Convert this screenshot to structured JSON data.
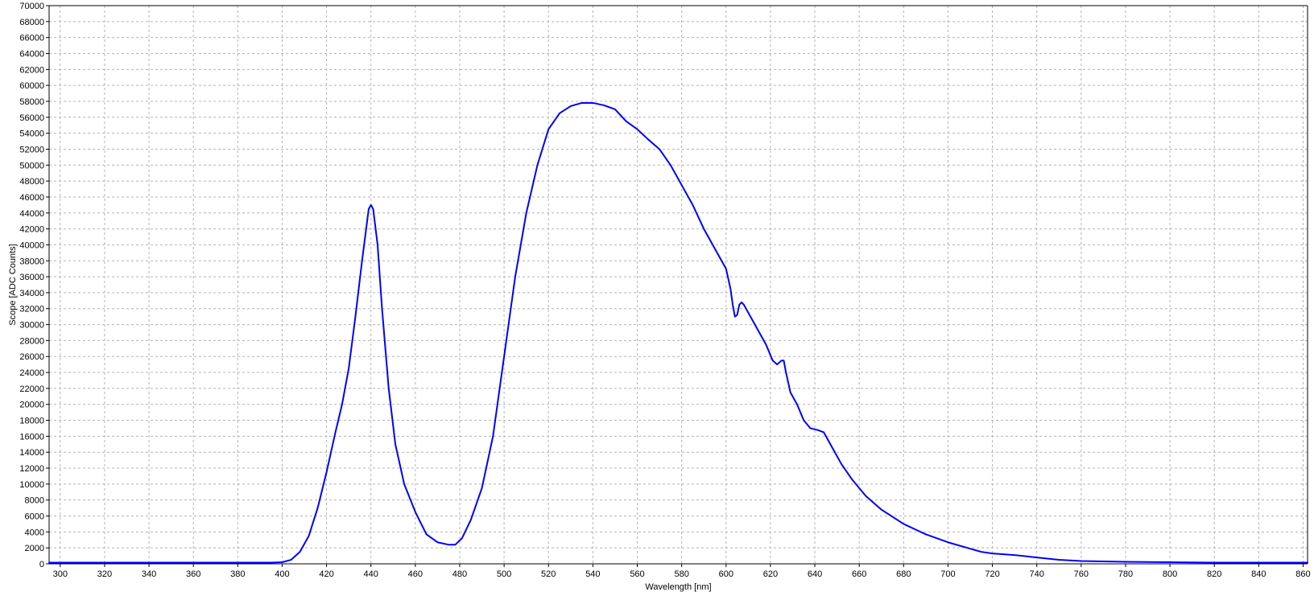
{
  "chart_data": {
    "type": "line",
    "xlabel": "Wavelength [nm]",
    "ylabel": "Scope [ADC Counts]",
    "xlim": [
      295,
      862
    ],
    "ylim": [
      0,
      70000
    ],
    "x_ticks": [
      300,
      320,
      340,
      360,
      380,
      400,
      420,
      440,
      460,
      480,
      500,
      520,
      540,
      560,
      580,
      600,
      620,
      640,
      660,
      680,
      700,
      720,
      740,
      760,
      780,
      800,
      820,
      840,
      860
    ],
    "y_ticks": [
      0,
      2000,
      4000,
      6000,
      8000,
      10000,
      12000,
      14000,
      16000,
      18000,
      20000,
      22000,
      24000,
      26000,
      28000,
      30000,
      32000,
      34000,
      36000,
      38000,
      40000,
      42000,
      44000,
      46000,
      48000,
      50000,
      52000,
      54000,
      56000,
      58000,
      60000,
      62000,
      64000,
      66000,
      68000,
      70000
    ],
    "grid": true,
    "series": [
      {
        "color": "#0000ff",
        "x": [
          295,
          320,
          360,
          380,
          395,
          400,
          404,
          408,
          412,
          416,
          420,
          424,
          427,
          430,
          433,
          436,
          439,
          440,
          441,
          443,
          445,
          448,
          451,
          455,
          460,
          465,
          470,
          475,
          478,
          481,
          485,
          490,
          495,
          500,
          505,
          510,
          515,
          520,
          525,
          530,
          535,
          540,
          545,
          550,
          555,
          560,
          565,
          570,
          575,
          580,
          585,
          590,
          595,
          600,
          602,
          603,
          604,
          605,
          606,
          607,
          608,
          610,
          612,
          615,
          618,
          621,
          623,
          625,
          626,
          627,
          629,
          632,
          635,
          638,
          641,
          644,
          648,
          652,
          657,
          663,
          670,
          680,
          690,
          700,
          710,
          715,
          720,
          725,
          730,
          740,
          750,
          760,
          780,
          800,
          820,
          840,
          862
        ],
        "y": [
          150,
          150,
          150,
          150,
          150,
          200,
          500,
          1500,
          3500,
          7000,
          11500,
          16500,
          20000,
          24500,
          31000,
          38000,
          44500,
          45000,
          44500,
          40000,
          32000,
          22000,
          15000,
          10000,
          6500,
          3700,
          2700,
          2400,
          2400,
          3200,
          5500,
          9500,
          16000,
          26000,
          36000,
          44000,
          50000,
          54500,
          56500,
          57400,
          57800,
          57800,
          57500,
          57000,
          55500,
          54500,
          53200,
          52000,
          50000,
          47500,
          45000,
          42000,
          39500,
          37000,
          34500,
          32500,
          31000,
          31200,
          32500,
          32800,
          32500,
          31500,
          30500,
          29000,
          27500,
          25500,
          25000,
          25500,
          25500,
          24000,
          21500,
          20000,
          18000,
          17000,
          16800,
          16500,
          14500,
          12500,
          10500,
          8500,
          6800,
          5000,
          3700,
          2700,
          1900,
          1500,
          1300,
          1200,
          1100,
          800,
          500,
          350,
          250,
          200,
          150,
          150,
          150
        ]
      }
    ]
  }
}
